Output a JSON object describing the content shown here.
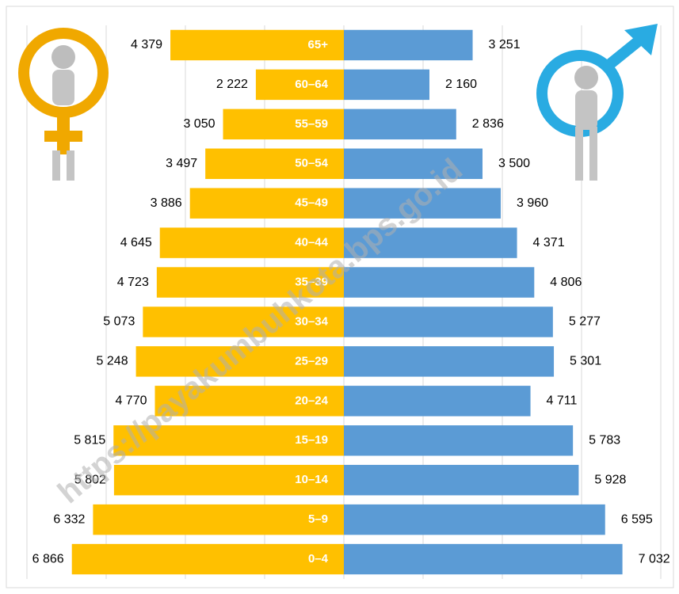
{
  "chart_data": {
    "type": "pyramid",
    "categories": [
      "65+",
      "60–64",
      "55–59",
      "50–54",
      "45–49",
      "40–44",
      "35–39",
      "30–34",
      "25–29",
      "20–24",
      "15–19",
      "10–14",
      "5–9",
      "0–4"
    ],
    "series": [
      {
        "color": "#FFC000",
        "values": [
          4379,
          2222,
          3050,
          3497,
          3886,
          4645,
          4723,
          5073,
          5248,
          4770,
          5815,
          5802,
          6332,
          6866
        ],
        "value_labels": [
          "4 379",
          "2 222",
          "3 050",
          "3 497",
          "3 886",
          "4 645",
          "4 723",
          "5 073",
          "5 248",
          "4 770",
          "5 815",
          "5 802",
          "6 332",
          "6 866"
        ]
      },
      {
        "color": "#5B9BD5",
        "values": [
          3251,
          2160,
          2836,
          3500,
          3960,
          4371,
          4806,
          5277,
          5301,
          4711,
          5783,
          5928,
          6595,
          7032
        ],
        "value_labels": [
          "3 251",
          "2 160",
          "2 836",
          "3 500",
          "3 960",
          "4 371",
          "4 806",
          "5 277",
          "5 301",
          "4 711",
          "5 783",
          "5 928",
          "6 595",
          "7 032"
        ]
      }
    ],
    "xlim": [
      -8000,
      8000
    ],
    "xticks": [
      -8000,
      -6000,
      -4000,
      -2000,
      0,
      2000,
      4000,
      6000,
      8000
    ],
    "grid": true,
    "watermark": "https://payakumbuhkota.bps.go.id"
  }
}
